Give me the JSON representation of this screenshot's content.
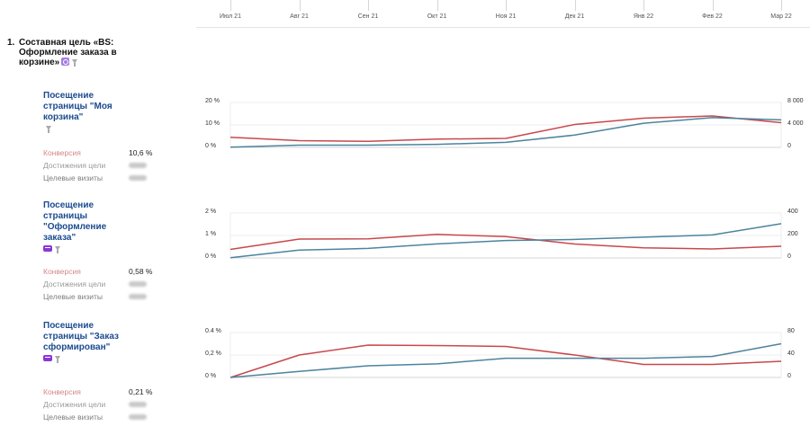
{
  "timeline": {
    "months": [
      "Июл 21",
      "Авг 21",
      "Сен 21",
      "Окт 21",
      "Ноя 21",
      "Дек 21",
      "Янв 22",
      "Фев 22",
      "Мар 22"
    ]
  },
  "goal": {
    "number": "1.",
    "title": "Составная цель «BS: Оформление заказа в корзине»",
    "icon_names": [
      "composite-goal-icon",
      "filter-icon"
    ]
  },
  "blocks": [
    {
      "title": "Посещение страницы \"Моя корзина\"",
      "metrics": [
        {
          "label": "Конверсия",
          "value": "10,6 %"
        },
        {
          "label": "Достижения цели",
          "value": ""
        },
        {
          "label": "Целевые визиты",
          "value": ""
        }
      ],
      "left_axis": [
        "20 %",
        "10 %",
        "0 %"
      ],
      "right_axis": [
        "8 000",
        "4 000",
        "0"
      ],
      "chart_data": {
        "type": "line",
        "x": [
          "Июл 21",
          "Авг 21",
          "Сен 21",
          "Окт 21",
          "Ноя 21",
          "Дек 21",
          "Янв 22",
          "Фев 22",
          "Мар 22"
        ],
        "series": [
          {
            "axis": "left",
            "unit": "%",
            "color": "#c8484d",
            "values": [
              4.5,
              3.0,
              2.7,
              3.7,
              4.0,
              10.2,
              13.0,
              14.0,
              11.0
            ]
          },
          {
            "axis": "right",
            "unit": "visits",
            "color": "#4c849e",
            "values": [
              50,
              400,
              400,
              550,
              900,
              2200,
              4300,
              5300,
              4900
            ]
          }
        ],
        "ylim_left": [
          0,
          20
        ],
        "ylim_right": [
          0,
          8000
        ]
      }
    },
    {
      "title": "Посещение страницы \"Оформление заказа\"",
      "metrics": [
        {
          "label": "Конверсия",
          "value": "0,58 %"
        },
        {
          "label": "Достижения цели",
          "value": ""
        },
        {
          "label": "Целевые визиты",
          "value": ""
        }
      ],
      "left_axis": [
        "2 %",
        "1 %",
        "0 %"
      ],
      "right_axis": [
        "400",
        "200",
        "0"
      ],
      "chart_data": {
        "type": "line",
        "x": [
          "Июл 21",
          "Авг 21",
          "Сен 21",
          "Окт 21",
          "Ноя 21",
          "Дек 21",
          "Янв 22",
          "Фев 22",
          "Мар 22"
        ],
        "series": [
          {
            "axis": "left",
            "unit": "%",
            "color": "#c8484d",
            "values": [
              0.38,
              0.84,
              0.85,
              1.05,
              0.95,
              0.62,
              0.45,
              0.4,
              0.52
            ]
          },
          {
            "axis": "right",
            "unit": "visits",
            "color": "#4c849e",
            "values": [
              2,
              70,
              85,
              125,
              155,
              165,
              185,
              205,
              305
            ]
          }
        ],
        "ylim_left": [
          0,
          2
        ],
        "ylim_right": [
          0,
          400
        ]
      }
    },
    {
      "title": "Посещение страницы \"Заказ сформирован\"",
      "metrics": [
        {
          "label": "Конверсия",
          "value": "0,21 %"
        },
        {
          "label": "Достижения цели",
          "value": ""
        },
        {
          "label": "Целевые визиты",
          "value": ""
        }
      ],
      "left_axis": [
        "0.4 %",
        "0,2 %",
        "0 %"
      ],
      "right_axis": [
        "80",
        "40",
        "0"
      ],
      "chart_data": {
        "type": "line",
        "x": [
          "Июл 21",
          "Авг 21",
          "Сен 21",
          "Окт 21",
          "Ноя 21",
          "Дек 21",
          "Янв 22",
          "Фев 22",
          "Мар 22"
        ],
        "series": [
          {
            "axis": "left",
            "unit": "%",
            "color": "#c8484d",
            "values": [
              0.0,
              0.25,
              0.36,
              0.355,
              0.345,
              0.25,
              0.145,
              0.145,
              0.18
            ]
          },
          {
            "axis": "right",
            "unit": "visits",
            "color": "#4c849e",
            "values": [
              0,
              13,
              25,
              29,
              41,
              41,
              41,
              45,
              72
            ]
          }
        ],
        "ylim_left": [
          0,
          0.5
        ],
        "ylim_right": [
          0,
          96
        ]
      }
    }
  ]
}
